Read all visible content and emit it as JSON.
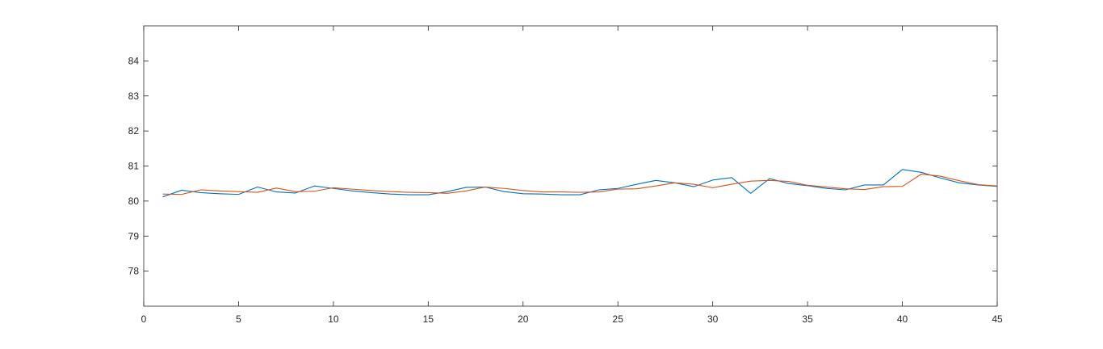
{
  "chart_data": {
    "type": "line",
    "title": "",
    "xlabel": "",
    "ylabel": "",
    "xlim": [
      0,
      45
    ],
    "ylim": [
      77,
      85
    ],
    "xticks": [
      0,
      5,
      10,
      15,
      20,
      25,
      30,
      35,
      40,
      45
    ],
    "yticks": [
      78,
      79,
      80,
      81,
      82,
      83,
      84
    ],
    "xtick_labels": [
      "0",
      "5",
      "10",
      "15",
      "20",
      "25",
      "30",
      "35",
      "40",
      "45"
    ],
    "ytick_labels": [
      "78",
      "79",
      "80",
      "81",
      "82",
      "83",
      "84"
    ],
    "grid": false,
    "legend": "none",
    "x": [
      1,
      2,
      3,
      4,
      5,
      6,
      7,
      8,
      9,
      10,
      11,
      12,
      13,
      14,
      15,
      16,
      17,
      18,
      19,
      20,
      21,
      22,
      23,
      24,
      25,
      26,
      27,
      28,
      29,
      30,
      31,
      32,
      33,
      34,
      35,
      36,
      37,
      38,
      39,
      40,
      41,
      42,
      43,
      44,
      45
    ],
    "series": [
      {
        "color": "#0072BD",
        "values": [
          80.12,
          80.31,
          80.24,
          80.21,
          80.19,
          80.4,
          80.26,
          80.23,
          80.43,
          80.36,
          80.29,
          80.24,
          80.2,
          80.18,
          80.18,
          80.27,
          80.39,
          80.4,
          80.27,
          80.21,
          80.2,
          80.18,
          80.18,
          80.32,
          80.36,
          80.48,
          80.59,
          80.52,
          80.41,
          80.6,
          80.67,
          80.22,
          80.64,
          80.5,
          80.44,
          80.36,
          80.32,
          80.46,
          80.46,
          80.9,
          80.82,
          80.66,
          80.52,
          80.46,
          80.42
        ]
      },
      {
        "color": "#D95319",
        "values": [
          80.2,
          80.19,
          80.32,
          80.29,
          80.27,
          80.25,
          80.37,
          80.27,
          80.28,
          80.38,
          80.34,
          80.3,
          80.27,
          80.25,
          80.24,
          80.22,
          80.29,
          80.4,
          80.36,
          80.3,
          80.26,
          80.26,
          80.25,
          80.26,
          80.34,
          80.35,
          80.43,
          80.52,
          80.48,
          80.38,
          80.48,
          80.57,
          80.59,
          80.56,
          80.45,
          80.4,
          80.35,
          80.33,
          80.41,
          80.42,
          80.77,
          80.71,
          80.58,
          80.47,
          80.43
        ]
      }
    ]
  },
  "colors": {
    "axis": "#262626",
    "background": "#ffffff"
  }
}
